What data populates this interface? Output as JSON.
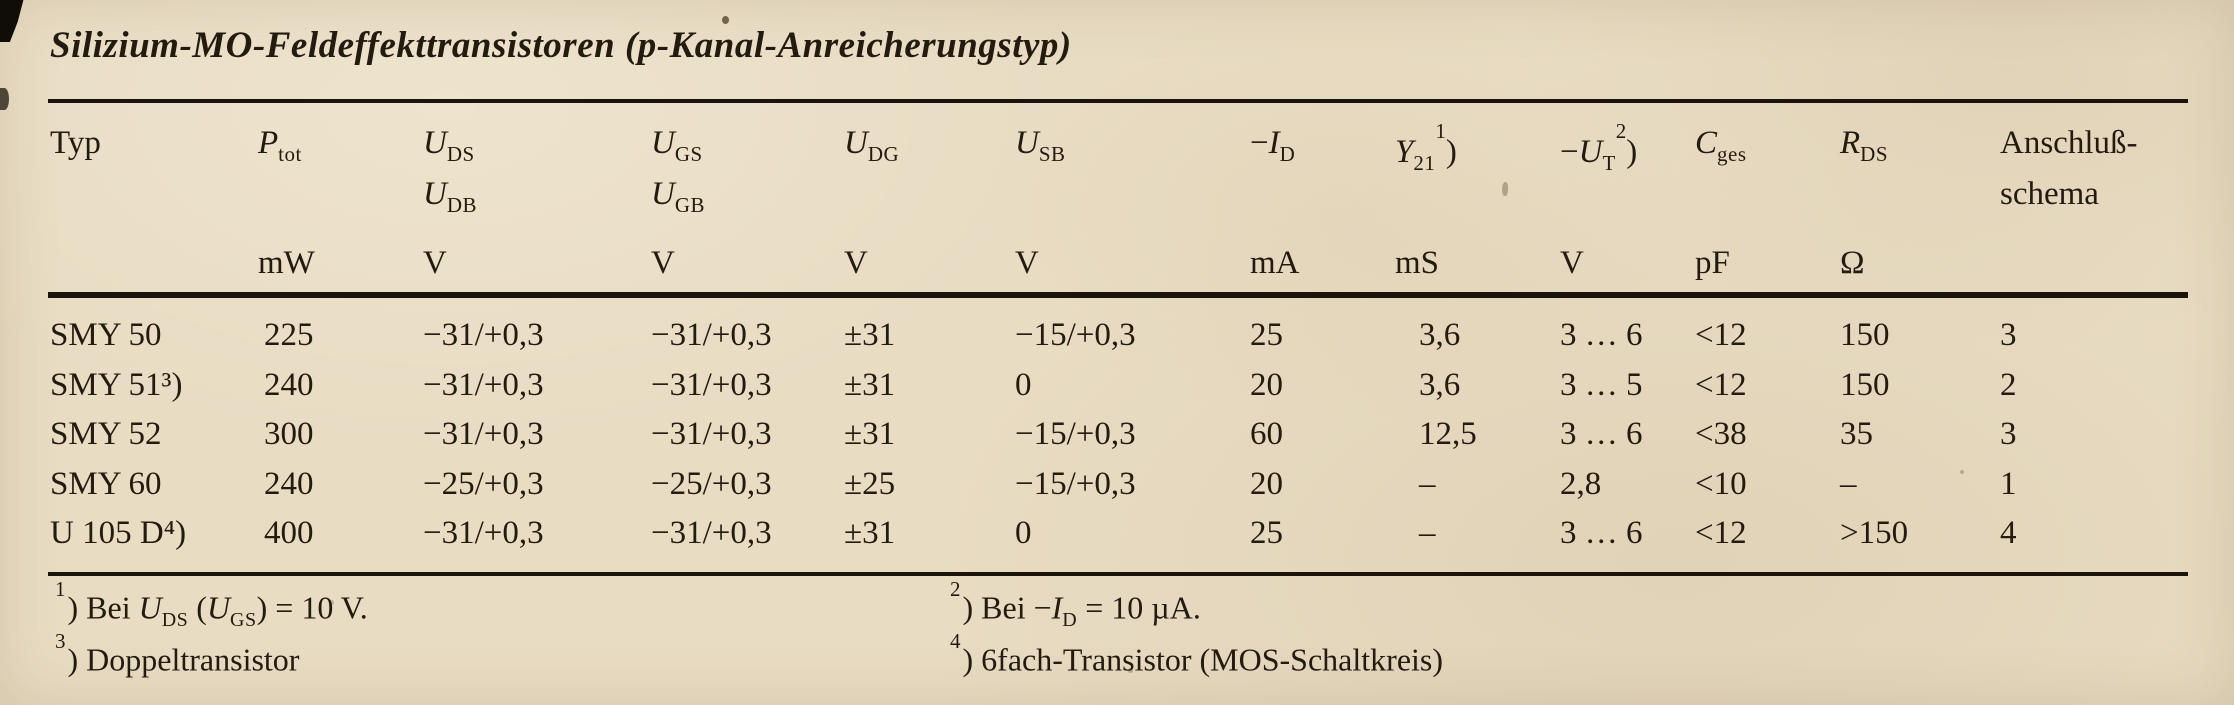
{
  "colors": {
    "paper": "#e8dcc3",
    "ink": "#241b10",
    "rule": "#1a140c"
  },
  "title": "Silizium-MO-Feldeffekttransistoren (p-Kanal-Anreicherungstyp)",
  "table": {
    "columns": {
      "typ": {
        "label": "Typ",
        "unit": ""
      },
      "ptot": {
        "sym": "P",
        "sub": "tot",
        "unit": "mW"
      },
      "uds": {
        "sym": "U",
        "sub": "DS",
        "sym2": "U",
        "sub2": "DB",
        "unit": "V"
      },
      "ugs": {
        "sym": "U",
        "sub": "GS",
        "sym2": "U",
        "sub2": "GB",
        "unit": "V"
      },
      "udg": {
        "sym": "U",
        "sub": "DG",
        "unit": "V"
      },
      "usb": {
        "sym": "U",
        "sub": "SB",
        "unit": "V"
      },
      "id": {
        "prefix": "−",
        "sym": "I",
        "sub": "D",
        "unit": "mA"
      },
      "y21": {
        "sym": "Y",
        "sub": "21",
        "fn": "1",
        "fnp": ")",
        "unit": "mS"
      },
      "ut": {
        "prefix": "−",
        "sym": "U",
        "sub": "T",
        "fn": "2",
        "fnp": ")",
        "unit": "V"
      },
      "cges": {
        "sym": "C",
        "sub": "ges",
        "unit": "pF"
      },
      "rds": {
        "sym": "R",
        "sub": "DS",
        "unit": "Ω"
      },
      "anschluss": {
        "label": "Anschluß-",
        "label2": "schema",
        "unit": ""
      }
    },
    "rows": [
      [
        "SMY 50",
        "225",
        "−31/+0,3",
        "−31/+0,3",
        "±31",
        "−15/+0,3",
        "25",
        "3,6",
        "3 … 6",
        "<12",
        "150",
        "3"
      ],
      [
        "SMY 51³)",
        "240",
        "−31/+0,3",
        "−31/+0,3",
        "±31",
        "0",
        "20",
        "3,6",
        "3 … 5",
        "<12",
        "150",
        "2"
      ],
      [
        "SMY 52",
        "300",
        "−31/+0,3",
        "−31/+0,3",
        "±31",
        "−15/+0,3",
        "60",
        "12,5",
        "3 … 6",
        "<38",
        "35",
        "3"
      ],
      [
        "SMY 60",
        "240",
        "−25/+0,3",
        "−25/+0,3",
        "±25",
        "−15/+0,3",
        "20",
        "–",
        "2,8",
        "<10",
        "–",
        "1"
      ],
      [
        "U 105 D⁴)",
        "400",
        "−31/+0,3",
        "−31/+0,3",
        "±31",
        "0",
        "25",
        "–",
        "3 … 6",
        "<12",
        ">150",
        "4"
      ]
    ]
  },
  "footnotes": {
    "fn1": {
      "ref": "1",
      "paren": ")",
      "pre": " Bei ",
      "sym1": "U",
      "sub1": "DS",
      "mid": " (",
      "sym2": "U",
      "sub2": "GS",
      "post": ") = 10 V."
    },
    "fn2": {
      "ref": "2",
      "paren": ")",
      "pre": " Bei −",
      "sym1": "I",
      "sub1": "D",
      "post": " = 10 µA."
    },
    "fn3": {
      "ref": "3",
      "paren": ")",
      "text": " Doppeltransistor"
    },
    "fn4": {
      "ref": "4",
      "paren": ")",
      "text": " 6fach-Transistor (MOS-Schaltkreis)"
    }
  }
}
